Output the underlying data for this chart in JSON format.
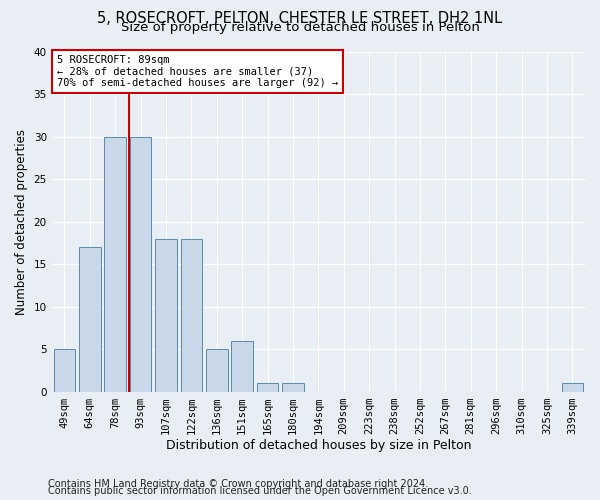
{
  "title1": "5, ROSECROFT, PELTON, CHESTER LE STREET, DH2 1NL",
  "title2": "Size of property relative to detached houses in Pelton",
  "xlabel": "Distribution of detached houses by size in Pelton",
  "ylabel": "Number of detached properties",
  "categories": [
    "49sqm",
    "64sqm",
    "78sqm",
    "93sqm",
    "107sqm",
    "122sqm",
    "136sqm",
    "151sqm",
    "165sqm",
    "180sqm",
    "194sqm",
    "209sqm",
    "223sqm",
    "238sqm",
    "252sqm",
    "267sqm",
    "281sqm",
    "296sqm",
    "310sqm",
    "325sqm",
    "339sqm"
  ],
  "values": [
    5,
    17,
    30,
    30,
    18,
    18,
    5,
    6,
    1,
    1,
    0,
    0,
    0,
    0,
    0,
    0,
    0,
    0,
    0,
    0,
    1
  ],
  "bar_color": "#c8d8e8",
  "bar_edge_color": "#5a8ab0",
  "bar_width": 0.85,
  "ylim": [
    0,
    40
  ],
  "yticks": [
    0,
    5,
    10,
    15,
    20,
    25,
    30,
    35,
    40
  ],
  "vline_color": "#cc0000",
  "annotation_text": "5 ROSECROFT: 89sqm\n← 28% of detached houses are smaller (37)\n70% of semi-detached houses are larger (92) →",
  "annotation_box_color": "#ffffff",
  "annotation_box_edge": "#cc0000",
  "footer1": "Contains HM Land Registry data © Crown copyright and database right 2024.",
  "footer2": "Contains public sector information licensed under the Open Government Licence v3.0.",
  "background_color": "#e8eef4",
  "grid_color": "#ffffff",
  "title1_fontsize": 10.5,
  "title2_fontsize": 9.5,
  "xlabel_fontsize": 9,
  "ylabel_fontsize": 8.5,
  "tick_fontsize": 7.5,
  "footer_fontsize": 7
}
